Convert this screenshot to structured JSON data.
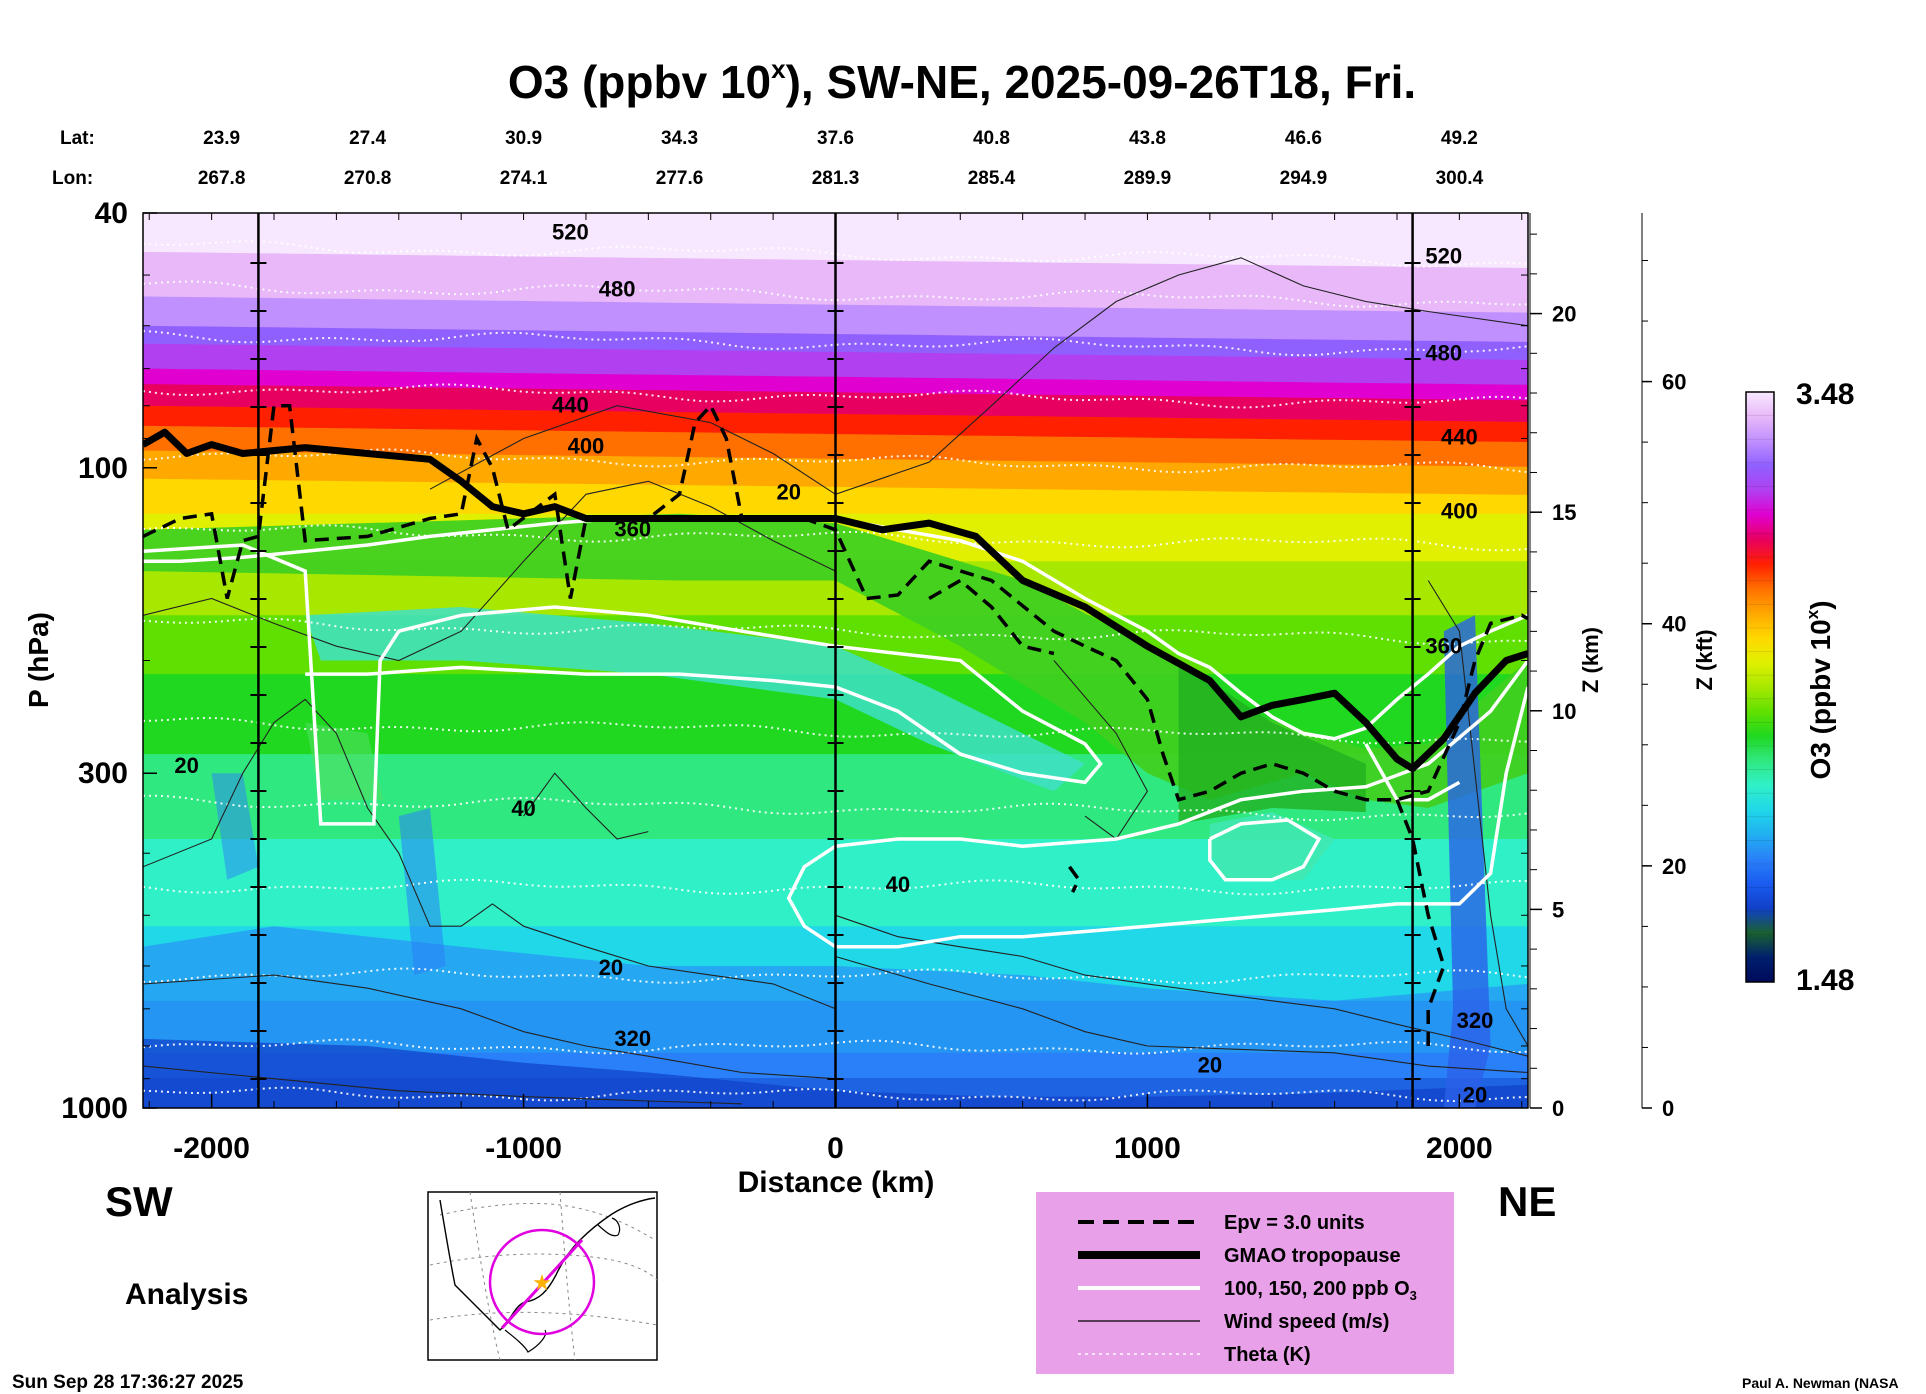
{
  "chart_data": {
    "type": "heatmap",
    "title": "O3 (ppbv 10",
    "title_sup": "x",
    "title_rest": "), SW-NE, 2025-09-26T18, Fri.",
    "lat_label": "Lat:",
    "lon_label": "Lon:",
    "lat": [
      "23.9",
      "27.4",
      "30.9",
      "34.3",
      "37.6",
      "40.8",
      "43.8",
      "46.6",
      "49.2"
    ],
    "lon": [
      "267.8",
      "270.8",
      "274.1",
      "277.6",
      "281.3",
      "285.4",
      "289.9",
      "294.9",
      "300.4"
    ],
    "latlon_x": [
      -2000,
      -1500,
      -1000,
      -500,
      0,
      500,
      1000,
      1500,
      2000
    ],
    "xlabel": "Distance (km)",
    "ylabel": "P (hPa)",
    "xlim": [
      -2220,
      2220
    ],
    "ylim": [
      1000,
      40
    ],
    "x_ticks": [
      -2000,
      -1000,
      0,
      1000,
      2000
    ],
    "x_tick_labels": [
      "-2000",
      "-1000",
      "0",
      "1000",
      "2000"
    ],
    "y_ticks": [
      40,
      100,
      300,
      1000
    ],
    "y_tick_labels": [
      "40",
      "100",
      "300",
      "1000"
    ],
    "z_km_label": "Z (km)",
    "z_km_ticks": [
      0,
      5,
      10,
      15,
      20
    ],
    "z_kft_label": "Z (kft)",
    "z_kft_ticks": [
      0,
      20,
      40,
      60
    ],
    "vertical_lines_km": [
      -1850,
      0,
      1850
    ],
    "colorbar": {
      "label": "O3 (ppbv 10",
      "label_sup": "x",
      "label_rest": ")",
      "min_label": "1.48",
      "max_label": "3.48",
      "range": [
        1.48,
        3.48
      ],
      "colors": [
        "#000a5a",
        "#00206e",
        "#1a6030",
        "#1040c8",
        "#1a5cf0",
        "#2a80f8",
        "#20b0f0",
        "#20d8e8",
        "#30f0c8",
        "#30e880",
        "#20d820",
        "#60e000",
        "#a8e800",
        "#e0f000",
        "#ffd800",
        "#ffa800",
        "#ff7000",
        "#ff2000",
        "#e80060",
        "#e000d0",
        "#b040f0",
        "#9060ff",
        "#c090ff",
        "#e8b8f8",
        "#f8e8ff"
      ]
    },
    "theta_labels": [
      "320",
      "360",
      "400",
      "440",
      "480",
      "520"
    ],
    "wind_labels": [
      "20",
      "40"
    ],
    "tropopause": [
      [
        -2220,
        92
      ],
      [
        -2150,
        88
      ],
      [
        -2080,
        95
      ],
      [
        -2000,
        92
      ],
      [
        -1900,
        95
      ],
      [
        -1700,
        93
      ],
      [
        -1500,
        95
      ],
      [
        -1300,
        97
      ],
      [
        -1200,
        105
      ],
      [
        -1100,
        115
      ],
      [
        -1000,
        118
      ],
      [
        -900,
        115
      ],
      [
        -800,
        120
      ],
      [
        -600,
        120
      ],
      [
        -400,
        120
      ],
      [
        -200,
        120
      ],
      [
        0,
        120
      ],
      [
        150,
        125
      ],
      [
        300,
        122
      ],
      [
        450,
        128
      ],
      [
        600,
        150
      ],
      [
        800,
        165
      ],
      [
        1000,
        190
      ],
      [
        1200,
        215
      ],
      [
        1300,
        245
      ],
      [
        1400,
        235
      ],
      [
        1500,
        230
      ],
      [
        1600,
        225
      ],
      [
        1700,
        250
      ],
      [
        1800,
        285
      ],
      [
        1850,
        295
      ],
      [
        1950,
        265
      ],
      [
        2050,
        225
      ],
      [
        2150,
        200
      ],
      [
        2220,
        195
      ]
    ]
  },
  "legend": {
    "items": [
      {
        "label": "Epv = 3.0 units",
        "style": "dashed"
      },
      {
        "label": "GMAO tropopause",
        "style": "thick"
      },
      {
        "label": "100, 150, 200 ppb O",
        "sub": "3",
        "style": "white"
      },
      {
        "label": "Wind speed (m/s)",
        "style": "thin"
      },
      {
        "label": "Theta (K)",
        "style": "dotted"
      }
    ],
    "bg": "#e8a0e8"
  },
  "corners": {
    "sw": "SW",
    "ne": "NE",
    "analysis": "Analysis",
    "timestamp": "Sun Sep 28 17:36:27 2025",
    "credit": "Paul A. Newman (NASA"
  }
}
